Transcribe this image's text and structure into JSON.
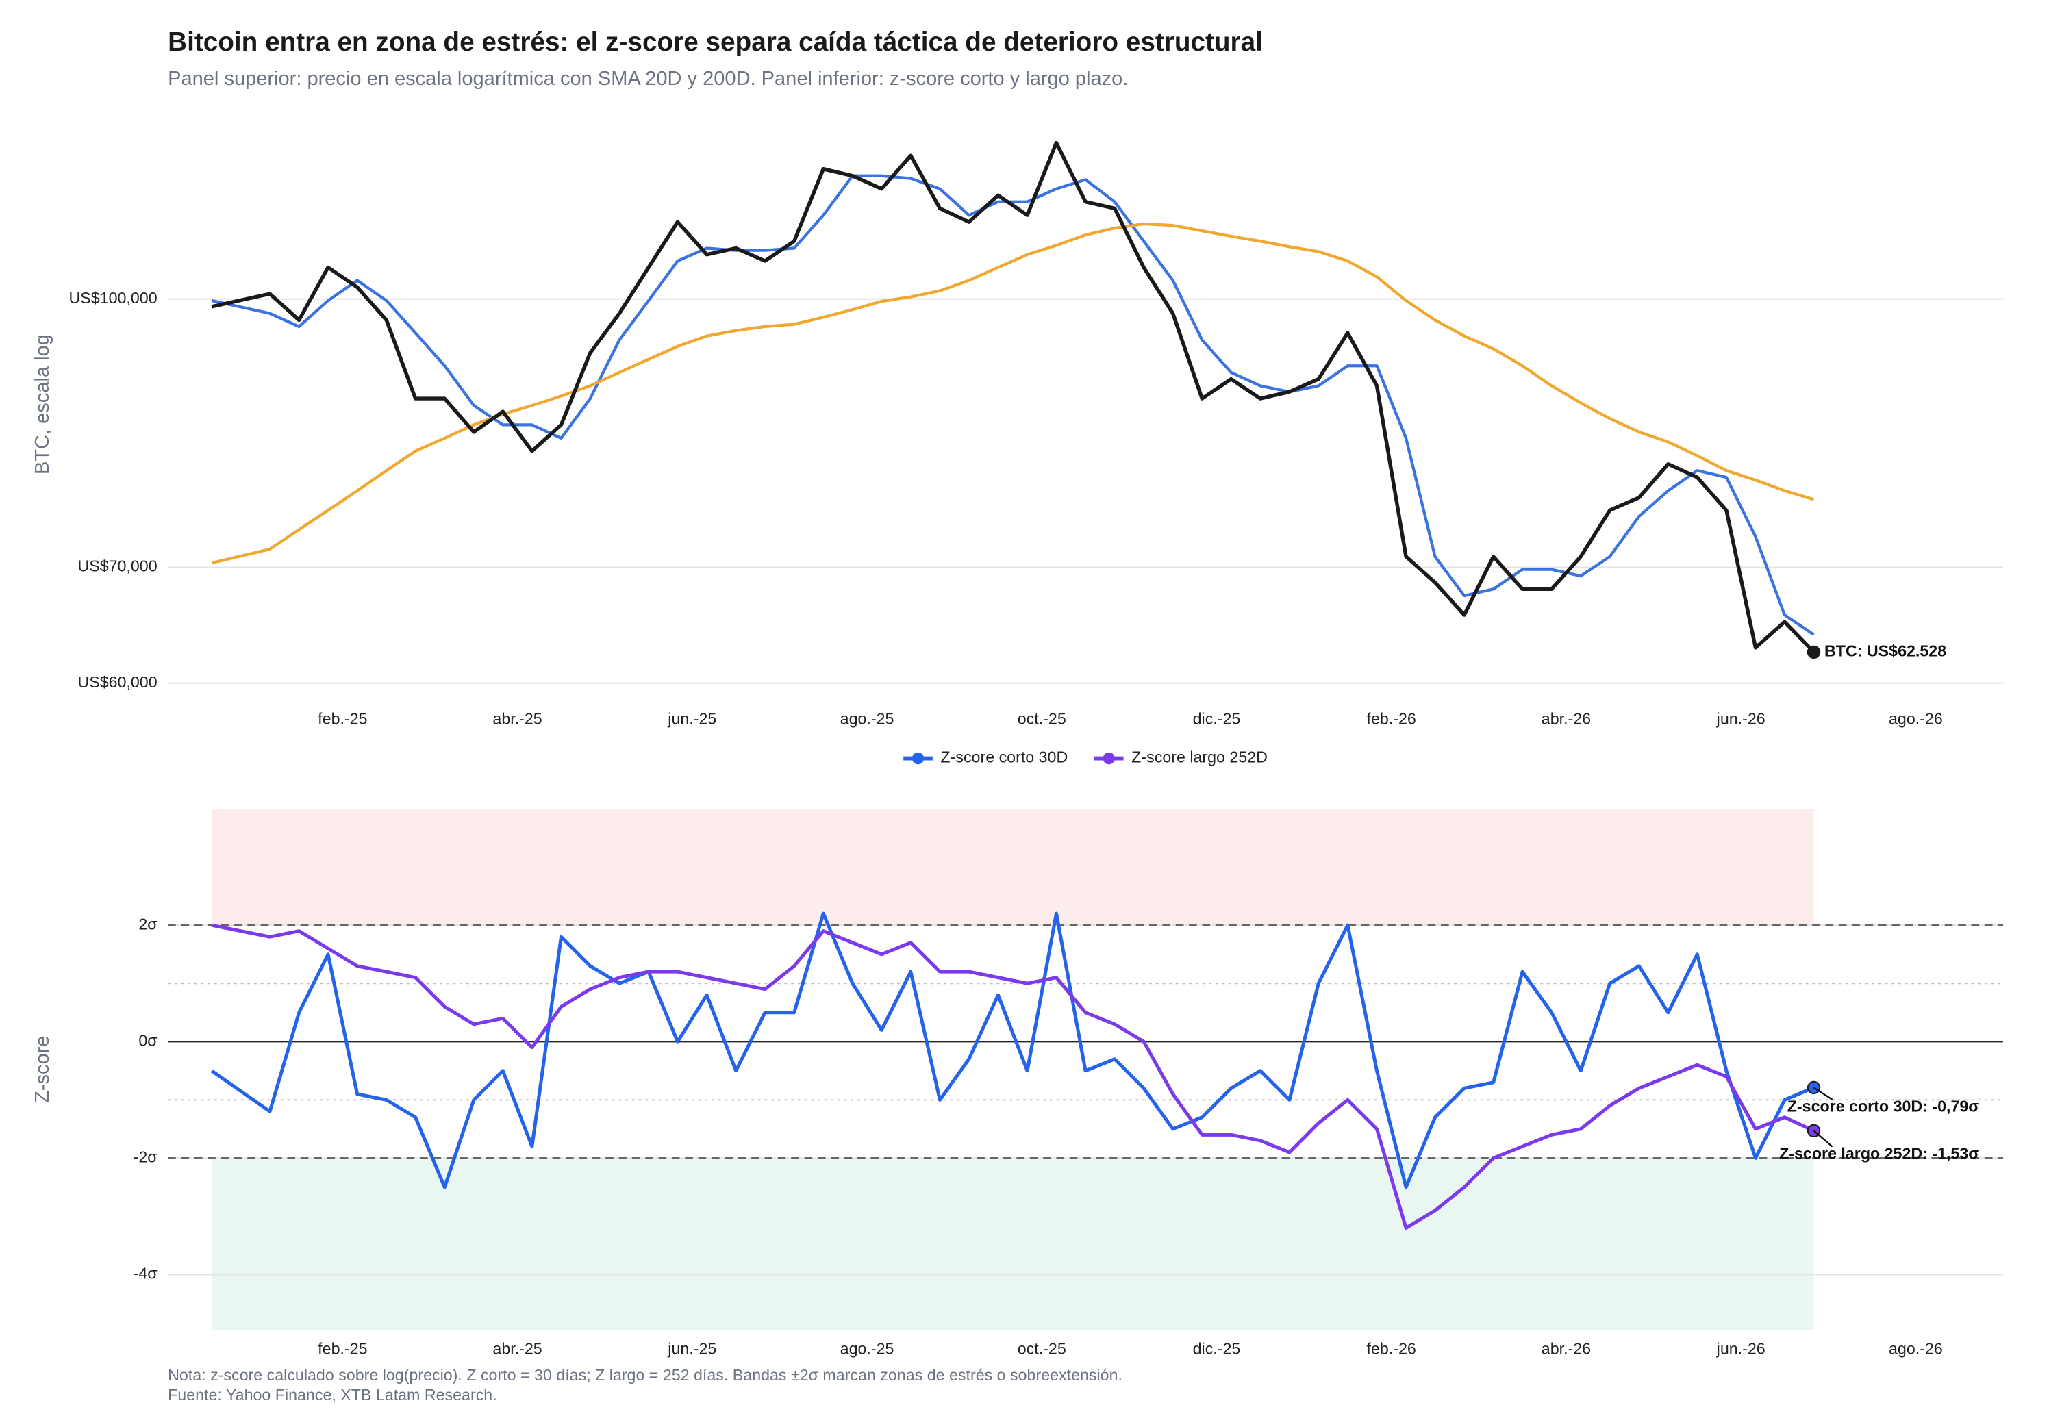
{
  "chart_data": [
    {
      "type": "line",
      "title": "Bitcoin entra en zona de estrés: el z-score separa caída táctica de deterioro estructural",
      "subtitle": "Panel superior: precio en escala logarítmica con SMA 20D y 200D. Panel inferior: z-score corto y largo plazo.",
      "ylabel": "BTC, escala log",
      "log": true,
      "grid": true,
      "x": [
        "2024-12",
        "2025-01",
        "2025-01",
        "2025-01",
        "2025-02",
        "2025-02",
        "2025-02",
        "2025-03",
        "2025-03",
        "2025-03",
        "2025-04",
        "2025-04",
        "2025-04",
        "2025-05",
        "2025-05",
        "2025-05",
        "2025-06",
        "2025-06",
        "2025-06",
        "2025-07",
        "2025-07",
        "2025-07",
        "2025-08",
        "2025-08",
        "2025-08",
        "2025-09",
        "2025-09",
        "2025-09",
        "2025-10",
        "2025-10",
        "2025-10",
        "2025-11",
        "2025-11",
        "2025-11",
        "2025-12",
        "2025-12",
        "2025-12",
        "2026-01",
        "2026-01",
        "2026-01",
        "2026-02",
        "2026-02",
        "2026-02",
        "2026-03",
        "2026-03",
        "2026-03",
        "2026-04",
        "2026-04",
        "2026-04",
        "2026-05",
        "2026-05",
        "2026-05",
        "2026-06",
        "2026-06",
        "2026-06"
      ],
      "xlim": [
        "2024-12",
        "2026-09"
      ],
      "xticks": [
        {
          "value": "2025-02",
          "label": "feb.-25"
        },
        {
          "value": "2025-04",
          "label": "abr.-25"
        },
        {
          "value": "2025-06",
          "label": "jun.-25"
        },
        {
          "value": "2025-08",
          "label": "ago.-25"
        },
        {
          "value": "2025-10",
          "label": "oct.-25"
        },
        {
          "value": "2025-12",
          "label": "dic.-25"
        },
        {
          "value": "2026-02",
          "label": "feb.-26"
        },
        {
          "value": "2026-04",
          "label": "abr.-26"
        },
        {
          "value": "2026-06",
          "label": "jun.-26"
        },
        {
          "value": "2026-08",
          "label": "ago.-26"
        }
      ],
      "ylim": [
        59500,
        127000
      ],
      "yticks": [
        {
          "value": 60000,
          "label": "US$60,000"
        },
        {
          "value": 70000,
          "label": "US$70,000"
        },
        {
          "value": 100000,
          "label": "US$100,000"
        }
      ],
      "series": [
        {
          "color": "#3b73e0",
          "width": 2.2,
          "values": [
            99800,
            98100,
            96400,
            99800,
            102500,
            99800,
            95600,
            91500,
            86800,
            84600,
            84600,
            83100,
            87600,
            94700,
            99800,
            105200,
            107000,
            106700,
            106700,
            107000,
            111800,
            117800,
            117800,
            117400,
            115800,
            111800,
            113800,
            113800,
            115800,
            117200,
            113800,
            108000,
            102500,
            94700,
            90700,
            89100,
            88400,
            89100,
            91500,
            91500,
            83100,
            71000,
            67400,
            68000,
            69800,
            69800,
            69200,
            71000,
            74900,
            77500,
            79600,
            78900,
            72900,
            65700,
            64000
          ]
        },
        {
          "color": "#f0a830",
          "width": 2.2,
          "values": [
            70400,
            71700,
            73600,
            75500,
            77500,
            79600,
            81700,
            83100,
            84600,
            85800,
            86800,
            87900,
            89100,
            90700,
            92300,
            93900,
            95200,
            95900,
            96400,
            96700,
            97600,
            98600,
            99700,
            100300,
            101100,
            102500,
            104300,
            106100,
            107400,
            108900,
            109900,
            110500,
            110300,
            109500,
            108700,
            108000,
            107200,
            106500,
            105200,
            103000,
            99800,
            97250,
            95200,
            93600,
            91500,
            89100,
            87100,
            85300,
            83800,
            82700,
            81200,
            79600,
            78600,
            77500,
            76600
          ]
        },
        {
          "color": "#1a1a1a",
          "width": 2.8,
          "values": [
            99000,
            100700,
            97250,
            104300,
            101600,
            97250,
            87600,
            87600,
            83800,
            86100,
            81700,
            84600,
            93100,
            98100,
            104300,
            110800,
            106100,
            107000,
            105200,
            108000,
            118900,
            117800,
            115800,
            121000,
            112800,
            110800,
            114800,
            111800,
            123100,
            113800,
            112800,
            104300,
            98100,
            87600,
            89900,
            87600,
            88400,
            89900,
            95600,
            89100,
            71000,
            68600,
            65700,
            71000,
            68000,
            68000,
            71000,
            75500,
            76800,
            80300,
            78900,
            75500,
            62900,
            65100,
            62528
          ]
        }
      ],
      "annotations": [
        null,
        null,
        {
          "text": "BTC: US$62.528"
        }
      ]
    },
    {
      "type": "line",
      "ylabel": "Z-score",
      "grid": true,
      "legend": "top",
      "x": [
        "2024-12",
        "2025-01",
        "2025-01",
        "2025-01",
        "2025-02",
        "2025-02",
        "2025-02",
        "2025-03",
        "2025-03",
        "2025-03",
        "2025-04",
        "2025-04",
        "2025-04",
        "2025-05",
        "2025-05",
        "2025-05",
        "2025-06",
        "2025-06",
        "2025-06",
        "2025-07",
        "2025-07",
        "2025-07",
        "2025-08",
        "2025-08",
        "2025-08",
        "2025-09",
        "2025-09",
        "2025-09",
        "2025-10",
        "2025-10",
        "2025-10",
        "2025-11",
        "2025-11",
        "2025-11",
        "2025-12",
        "2025-12",
        "2025-12",
        "2026-01",
        "2026-01",
        "2026-01",
        "2026-02",
        "2026-02",
        "2026-02",
        "2026-03",
        "2026-03",
        "2026-03",
        "2026-04",
        "2026-04",
        "2026-04",
        "2026-05",
        "2026-05",
        "2026-05",
        "2026-06",
        "2026-06",
        "2026-06"
      ],
      "xlim": [
        "2024-12",
        "2026-09"
      ],
      "xticks": [
        {
          "value": "2025-02",
          "label": "feb.-25"
        },
        {
          "value": "2025-04",
          "label": "abr.-25"
        },
        {
          "value": "2025-06",
          "label": "jun.-25"
        },
        {
          "value": "2025-08",
          "label": "ago.-25"
        },
        {
          "value": "2025-10",
          "label": "oct.-25"
        },
        {
          "value": "2025-12",
          "label": "dic.-25"
        },
        {
          "value": "2026-02",
          "label": "feb.-26"
        },
        {
          "value": "2026-04",
          "label": "abr.-26"
        },
        {
          "value": "2026-06",
          "label": "jun.-26"
        },
        {
          "value": "2026-08",
          "label": "ago.-26"
        }
      ],
      "ylim": [
        -4.95,
        4
      ],
      "yticks": [
        {
          "value": -4,
          "label": "-4σ"
        },
        {
          "value": -2,
          "label": "-2σ"
        },
        {
          "value": 0,
          "label": "0σ"
        },
        {
          "value": 2,
          "label": "2σ"
        }
      ],
      "bands": [
        {
          "from": 2,
          "to": 4,
          "color": "#fdecec"
        },
        {
          "from": -4.95,
          "to": -2,
          "color": "#e9f6f1"
        }
      ],
      "ref_lines": [
        {
          "value": 2,
          "style": "dashed"
        },
        {
          "value": -2,
          "style": "dashed"
        },
        {
          "value": 1,
          "style": "dotted"
        },
        {
          "value": -1,
          "style": "dotted"
        },
        {
          "value": 0,
          "style": "solid"
        }
      ],
      "series": [
        {
          "name": "Z-score corto 30D",
          "color": "#2563eb",
          "width": 2.6,
          "values": [
            -0.5,
            -1.2,
            0.5,
            1.5,
            -0.9,
            -1.0,
            -1.3,
            -2.5,
            -1.0,
            -0.5,
            -1.8,
            1.8,
            1.3,
            1.0,
            1.2,
            0.0,
            0.8,
            -0.5,
            0.5,
            0.5,
            2.2,
            1.0,
            0.2,
            1.2,
            -1.0,
            -0.3,
            0.8,
            -0.5,
            2.2,
            -0.5,
            -0.3,
            -0.8,
            -1.5,
            -1.3,
            -0.8,
            -0.5,
            -1.0,
            1.0,
            2.0,
            -0.5,
            -2.5,
            -1.3,
            -0.8,
            -0.7,
            1.2,
            0.5,
            -0.5,
            1.0,
            1.3,
            0.5,
            1.5,
            -0.5,
            -2.0,
            -1.0,
            -0.79
          ]
        },
        {
          "name": "Z-score largo 252D",
          "color": "#7c3aed",
          "width": 2.6,
          "values": [
            2.0,
            1.8,
            1.9,
            1.6,
            1.3,
            1.2,
            1.1,
            0.6,
            0.3,
            0.4,
            -0.1,
            0.6,
            0.9,
            1.1,
            1.2,
            1.2,
            1.1,
            1.0,
            0.9,
            1.3,
            1.9,
            1.7,
            1.5,
            1.7,
            1.2,
            1.2,
            1.1,
            1.0,
            1.1,
            0.5,
            0.3,
            0.0,
            -0.9,
            -1.6,
            -1.6,
            -1.7,
            -1.9,
            -1.4,
            -1.0,
            -1.5,
            -3.2,
            -2.9,
            -2.5,
            -2.0,
            -1.8,
            -1.6,
            -1.5,
            -1.1,
            -0.8,
            -0.6,
            -0.4,
            -0.6,
            -1.5,
            -1.3,
            -1.53
          ]
        }
      ],
      "annotations": [
        {
          "text": "Z-score corto 30D: -0,79σ"
        },
        {
          "text": "Z-score largo 252D: -1,53σ"
        }
      ],
      "note": "Nota: z-score calculado sobre log(precio). Z corto = 30 días; Z largo = 252 días. Bandas ±2σ marcan zonas de estrés o sobreextensión.",
      "source": "Fuente: Yahoo Finance, XTB Latam Research."
    }
  ]
}
